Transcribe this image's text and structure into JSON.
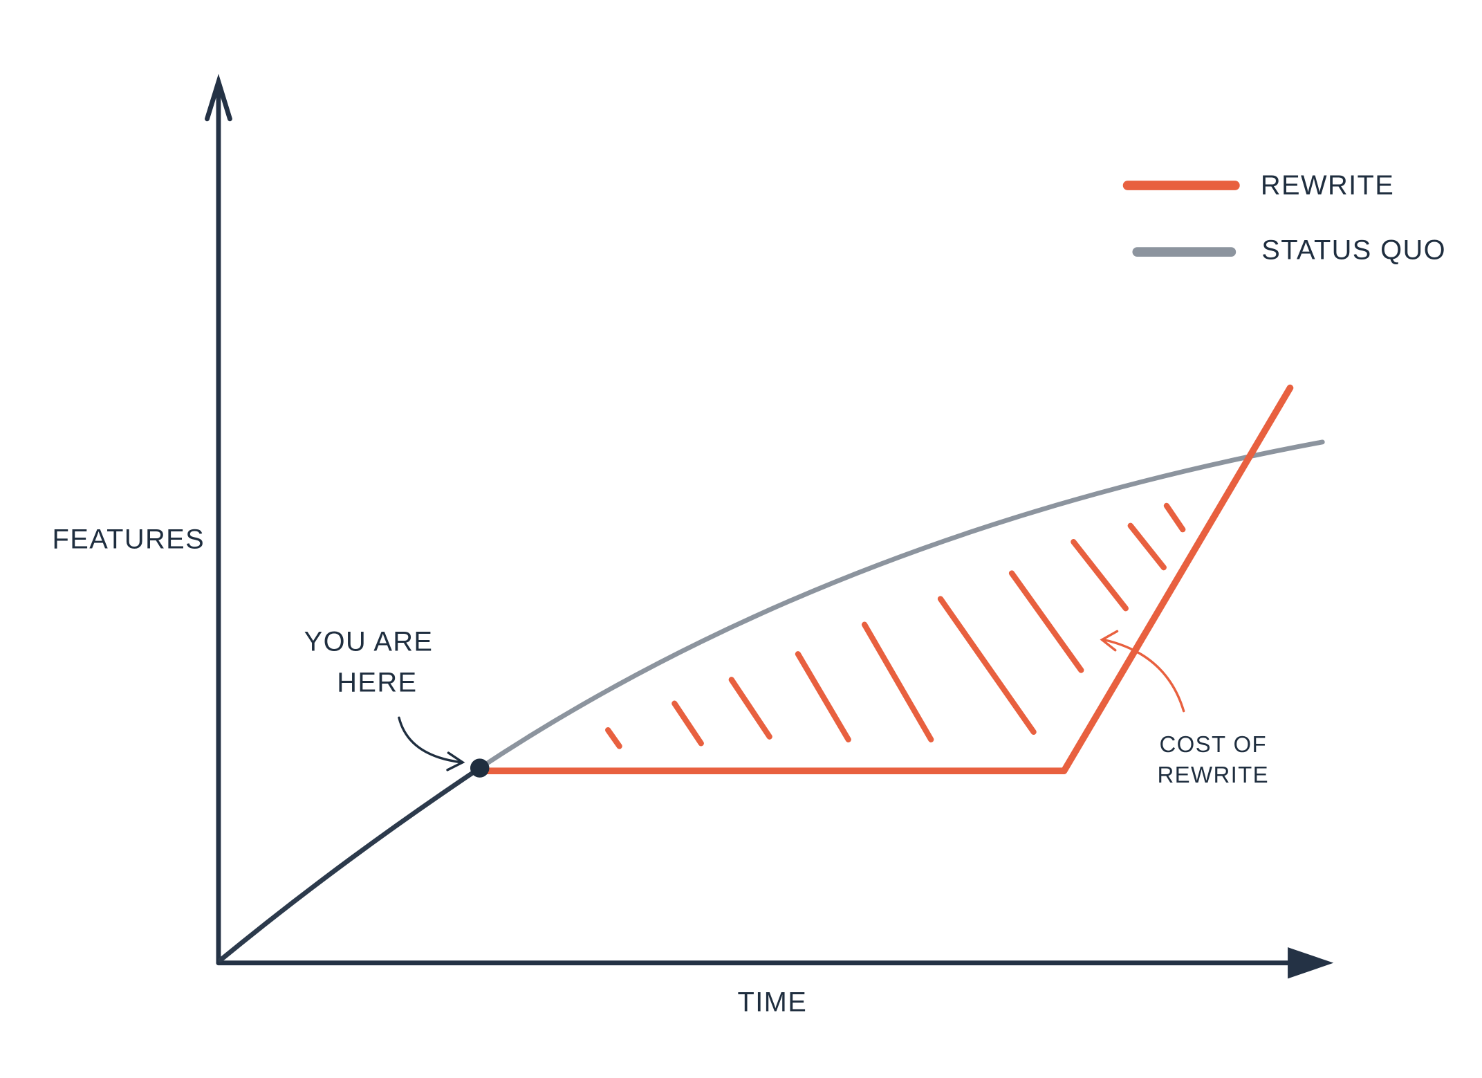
{
  "axes": {
    "y_label": "FEATURES",
    "x_label": "TIME"
  },
  "legend": [
    {
      "label": "REWRITE"
    },
    {
      "label": "STATUS QUO"
    }
  ],
  "annotations": {
    "you_are_here": [
      "YOU ARE",
      "HERE"
    ],
    "cost_of_rewrite": [
      "COST OF",
      "REWRITE"
    ]
  }
}
